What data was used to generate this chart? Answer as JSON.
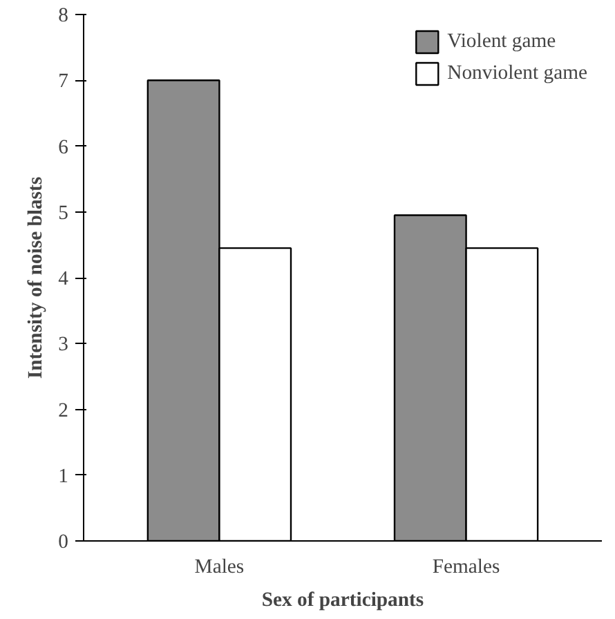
{
  "chart_data": {
    "type": "bar",
    "xlabel": "Sex of participants",
    "ylabel": "Intensity of noise blasts",
    "categories": [
      "Males",
      "Females"
    ],
    "series": [
      {
        "name": "Violent game",
        "color": "#8c8c8c",
        "values": [
          7.0,
          4.95
        ]
      },
      {
        "name": "Nonviolent game",
        "color": "#ffffff",
        "values": [
          4.45,
          4.45
        ]
      }
    ],
    "ylim": [
      0,
      8
    ],
    "yticks": [
      0,
      1,
      2,
      3,
      4,
      5,
      6,
      7,
      8
    ],
    "legend": "top right"
  }
}
